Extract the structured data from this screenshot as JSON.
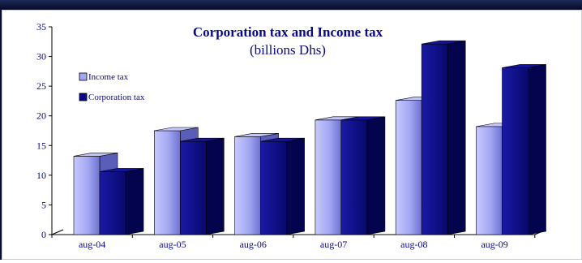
{
  "chart_data": {
    "type": "bar",
    "title": "Corporation tax and Income tax",
    "subtitle": "(billions Dhs)",
    "categories": [
      "aug-04",
      "aug-05",
      "aug-06",
      "aug-07",
      "aug-08",
      "aug-09"
    ],
    "series": [
      {
        "name": "Income tax",
        "values": [
          13.2,
          17.5,
          16.5,
          19.3,
          22.6,
          18.2
        ],
        "color": "#9fa3f0"
      },
      {
        "name": "Corporation tax",
        "values": [
          10.6,
          15.7,
          15.7,
          19.3,
          32.1,
          28.1
        ],
        "color": "#0a0a88"
      }
    ],
    "ylim": [
      0,
      35
    ],
    "yticks": [
      "0",
      "5",
      "10",
      "15",
      "20",
      "25",
      "30",
      "35"
    ],
    "grid": false,
    "legend_position": "left"
  }
}
